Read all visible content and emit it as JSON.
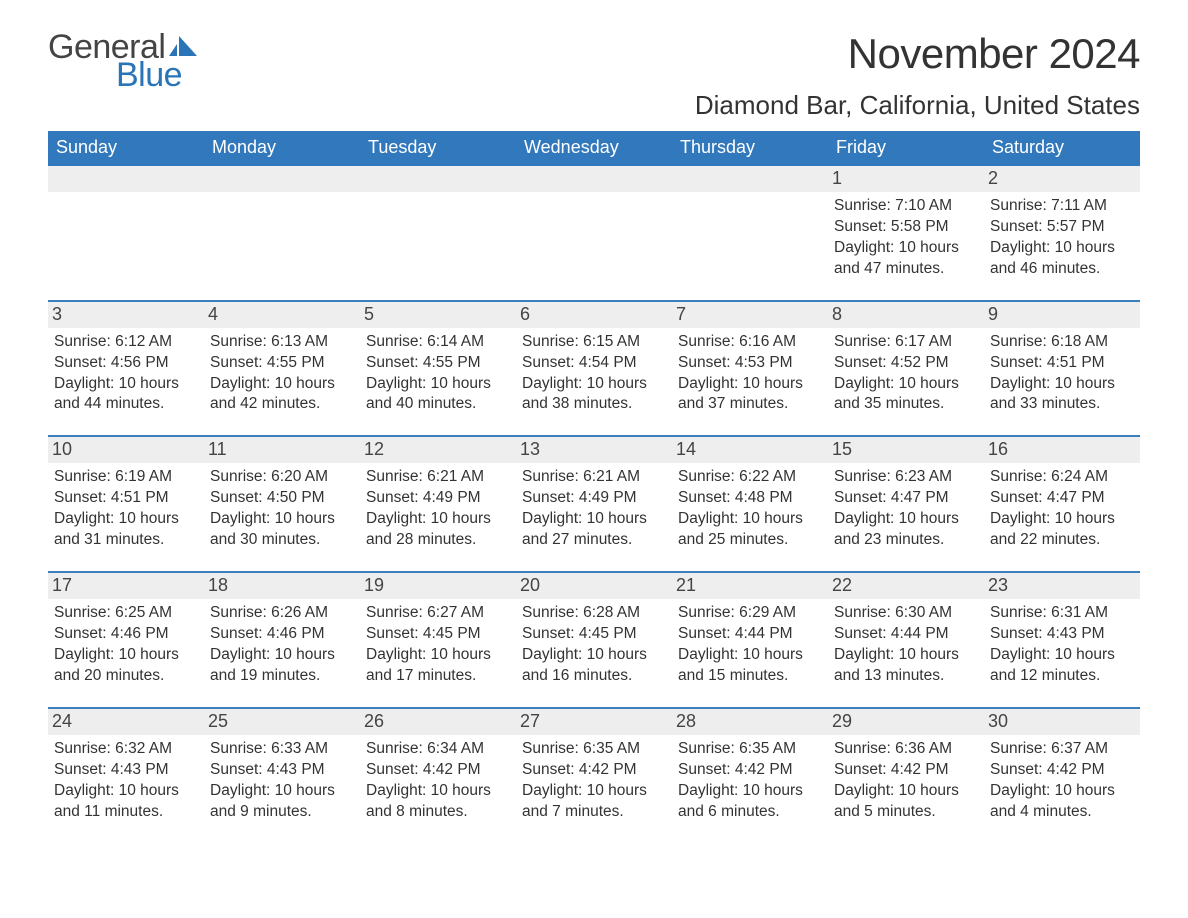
{
  "brand": {
    "word1": "General",
    "word2": "Blue",
    "word1_color": "#444444",
    "word2_color": "#2a74b8",
    "sail_color": "#2a74b8"
  },
  "title": "November 2024",
  "location": "Diamond Bar, California, United States",
  "colors": {
    "header_bg": "#3178bc",
    "header_text": "#ffffff",
    "week_divider": "#3b7fbf",
    "daynum_bg": "#eeeeee",
    "text": "#333333",
    "background": "#ffffff"
  },
  "fonts": {
    "month_title_size": 42,
    "location_size": 26,
    "weekday_size": 18,
    "daynum_size": 18,
    "body_size": 15.5
  },
  "weekdays": [
    "Sunday",
    "Monday",
    "Tuesday",
    "Wednesday",
    "Thursday",
    "Friday",
    "Saturday"
  ],
  "weeks": [
    [
      {
        "n": "",
        "empty": true
      },
      {
        "n": "",
        "empty": true
      },
      {
        "n": "",
        "empty": true
      },
      {
        "n": "",
        "empty": true
      },
      {
        "n": "",
        "empty": true
      },
      {
        "n": "1",
        "sunrise": "Sunrise: 7:10 AM",
        "sunset": "Sunset: 5:58 PM",
        "day1": "Daylight: 10 hours",
        "day2": "and 47 minutes."
      },
      {
        "n": "2",
        "sunrise": "Sunrise: 7:11 AM",
        "sunset": "Sunset: 5:57 PM",
        "day1": "Daylight: 10 hours",
        "day2": "and 46 minutes."
      }
    ],
    [
      {
        "n": "3",
        "sunrise": "Sunrise: 6:12 AM",
        "sunset": "Sunset: 4:56 PM",
        "day1": "Daylight: 10 hours",
        "day2": "and 44 minutes."
      },
      {
        "n": "4",
        "sunrise": "Sunrise: 6:13 AM",
        "sunset": "Sunset: 4:55 PM",
        "day1": "Daylight: 10 hours",
        "day2": "and 42 minutes."
      },
      {
        "n": "5",
        "sunrise": "Sunrise: 6:14 AM",
        "sunset": "Sunset: 4:55 PM",
        "day1": "Daylight: 10 hours",
        "day2": "and 40 minutes."
      },
      {
        "n": "6",
        "sunrise": "Sunrise: 6:15 AM",
        "sunset": "Sunset: 4:54 PM",
        "day1": "Daylight: 10 hours",
        "day2": "and 38 minutes."
      },
      {
        "n": "7",
        "sunrise": "Sunrise: 6:16 AM",
        "sunset": "Sunset: 4:53 PM",
        "day1": "Daylight: 10 hours",
        "day2": "and 37 minutes."
      },
      {
        "n": "8",
        "sunrise": "Sunrise: 6:17 AM",
        "sunset": "Sunset: 4:52 PM",
        "day1": "Daylight: 10 hours",
        "day2": "and 35 minutes."
      },
      {
        "n": "9",
        "sunrise": "Sunrise: 6:18 AM",
        "sunset": "Sunset: 4:51 PM",
        "day1": "Daylight: 10 hours",
        "day2": "and 33 minutes."
      }
    ],
    [
      {
        "n": "10",
        "sunrise": "Sunrise: 6:19 AM",
        "sunset": "Sunset: 4:51 PM",
        "day1": "Daylight: 10 hours",
        "day2": "and 31 minutes."
      },
      {
        "n": "11",
        "sunrise": "Sunrise: 6:20 AM",
        "sunset": "Sunset: 4:50 PM",
        "day1": "Daylight: 10 hours",
        "day2": "and 30 minutes."
      },
      {
        "n": "12",
        "sunrise": "Sunrise: 6:21 AM",
        "sunset": "Sunset: 4:49 PM",
        "day1": "Daylight: 10 hours",
        "day2": "and 28 minutes."
      },
      {
        "n": "13",
        "sunrise": "Sunrise: 6:21 AM",
        "sunset": "Sunset: 4:49 PM",
        "day1": "Daylight: 10 hours",
        "day2": "and 27 minutes."
      },
      {
        "n": "14",
        "sunrise": "Sunrise: 6:22 AM",
        "sunset": "Sunset: 4:48 PM",
        "day1": "Daylight: 10 hours",
        "day2": "and 25 minutes."
      },
      {
        "n": "15",
        "sunrise": "Sunrise: 6:23 AM",
        "sunset": "Sunset: 4:47 PM",
        "day1": "Daylight: 10 hours",
        "day2": "and 23 minutes."
      },
      {
        "n": "16",
        "sunrise": "Sunrise: 6:24 AM",
        "sunset": "Sunset: 4:47 PM",
        "day1": "Daylight: 10 hours",
        "day2": "and 22 minutes."
      }
    ],
    [
      {
        "n": "17",
        "sunrise": "Sunrise: 6:25 AM",
        "sunset": "Sunset: 4:46 PM",
        "day1": "Daylight: 10 hours",
        "day2": "and 20 minutes."
      },
      {
        "n": "18",
        "sunrise": "Sunrise: 6:26 AM",
        "sunset": "Sunset: 4:46 PM",
        "day1": "Daylight: 10 hours",
        "day2": "and 19 minutes."
      },
      {
        "n": "19",
        "sunrise": "Sunrise: 6:27 AM",
        "sunset": "Sunset: 4:45 PM",
        "day1": "Daylight: 10 hours",
        "day2": "and 17 minutes."
      },
      {
        "n": "20",
        "sunrise": "Sunrise: 6:28 AM",
        "sunset": "Sunset: 4:45 PM",
        "day1": "Daylight: 10 hours",
        "day2": "and 16 minutes."
      },
      {
        "n": "21",
        "sunrise": "Sunrise: 6:29 AM",
        "sunset": "Sunset: 4:44 PM",
        "day1": "Daylight: 10 hours",
        "day2": "and 15 minutes."
      },
      {
        "n": "22",
        "sunrise": "Sunrise: 6:30 AM",
        "sunset": "Sunset: 4:44 PM",
        "day1": "Daylight: 10 hours",
        "day2": "and 13 minutes."
      },
      {
        "n": "23",
        "sunrise": "Sunrise: 6:31 AM",
        "sunset": "Sunset: 4:43 PM",
        "day1": "Daylight: 10 hours",
        "day2": "and 12 minutes."
      }
    ],
    [
      {
        "n": "24",
        "sunrise": "Sunrise: 6:32 AM",
        "sunset": "Sunset: 4:43 PM",
        "day1": "Daylight: 10 hours",
        "day2": "and 11 minutes."
      },
      {
        "n": "25",
        "sunrise": "Sunrise: 6:33 AM",
        "sunset": "Sunset: 4:43 PM",
        "day1": "Daylight: 10 hours",
        "day2": "and 9 minutes."
      },
      {
        "n": "26",
        "sunrise": "Sunrise: 6:34 AM",
        "sunset": "Sunset: 4:42 PM",
        "day1": "Daylight: 10 hours",
        "day2": "and 8 minutes."
      },
      {
        "n": "27",
        "sunrise": "Sunrise: 6:35 AM",
        "sunset": "Sunset: 4:42 PM",
        "day1": "Daylight: 10 hours",
        "day2": "and 7 minutes."
      },
      {
        "n": "28",
        "sunrise": "Sunrise: 6:35 AM",
        "sunset": "Sunset: 4:42 PM",
        "day1": "Daylight: 10 hours",
        "day2": "and 6 minutes."
      },
      {
        "n": "29",
        "sunrise": "Sunrise: 6:36 AM",
        "sunset": "Sunset: 4:42 PM",
        "day1": "Daylight: 10 hours",
        "day2": "and 5 minutes."
      },
      {
        "n": "30",
        "sunrise": "Sunrise: 6:37 AM",
        "sunset": "Sunset: 4:42 PM",
        "day1": "Daylight: 10 hours",
        "day2": "and 4 minutes."
      }
    ]
  ]
}
